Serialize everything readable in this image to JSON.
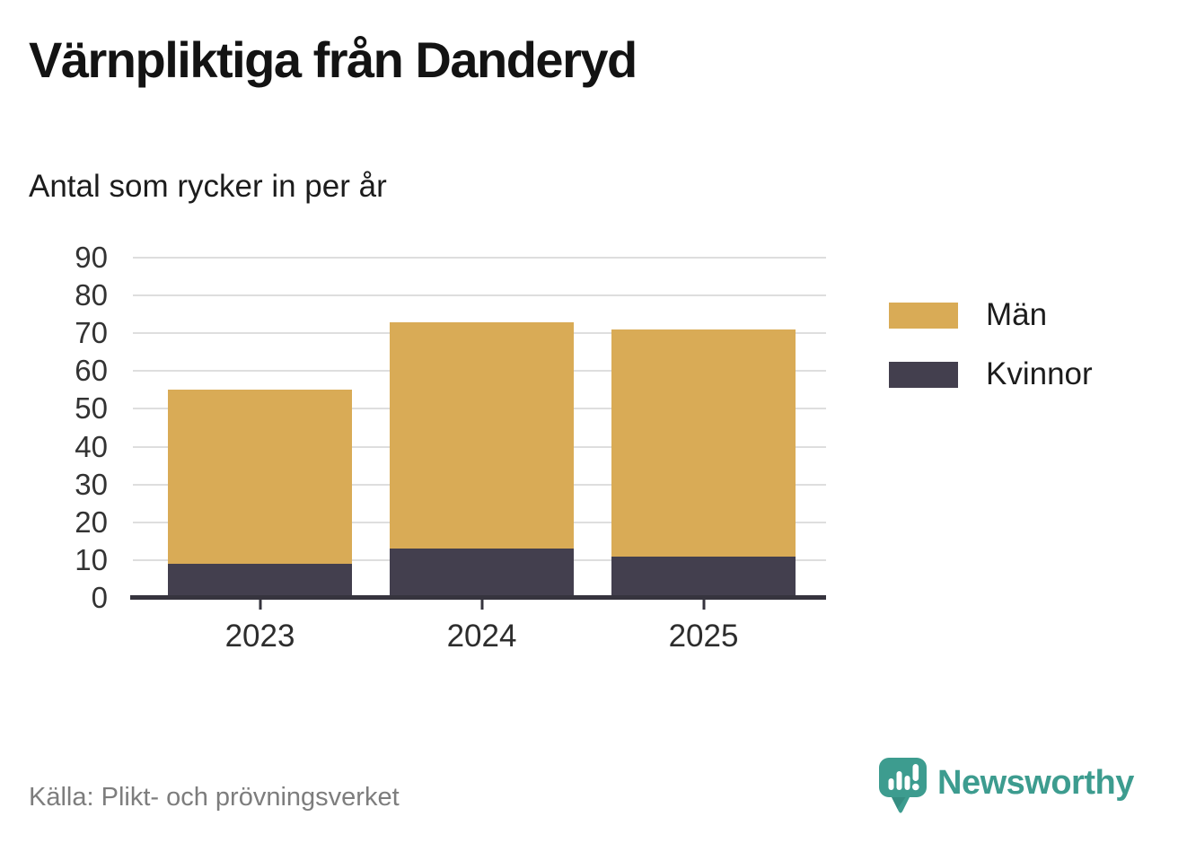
{
  "header": {
    "title": "Värnpliktiga från Danderyd",
    "subtitle": "Antal som rycker in per år"
  },
  "chart_data": {
    "type": "bar",
    "stacked": true,
    "title": "Värnpliktiga från Danderyd",
    "subtitle": "Antal som rycker in per år",
    "categories": [
      "2023",
      "2024",
      "2025"
    ],
    "series": [
      {
        "name": "Kvinnor",
        "color": "#433f4e",
        "values": [
          9,
          13,
          11
        ]
      },
      {
        "name": "Män",
        "color": "#d9ab56",
        "values": [
          46,
          60,
          60
        ]
      }
    ],
    "totals": [
      55,
      73,
      71
    ],
    "xlabel": "",
    "ylabel": "",
    "ylim": [
      0,
      90
    ],
    "ytick_step": 10,
    "grid": true,
    "legend_position": "right"
  },
  "legend": {
    "items": [
      {
        "label": "Män",
        "color": "#d9ab56"
      },
      {
        "label": "Kvinnor",
        "color": "#433f4e"
      }
    ]
  },
  "footer": {
    "source": "Källa: Plikt- och prövningsverket",
    "brand": "Newsworthy"
  },
  "colors": {
    "bar_gold": "#d9ab56",
    "bar_dark": "#433f4e",
    "axis": "#36343e",
    "gridline": "#dedede",
    "brand_teal": "#3d9c8f",
    "text": "#1c1c1c",
    "muted_text": "#7d7d7d"
  }
}
